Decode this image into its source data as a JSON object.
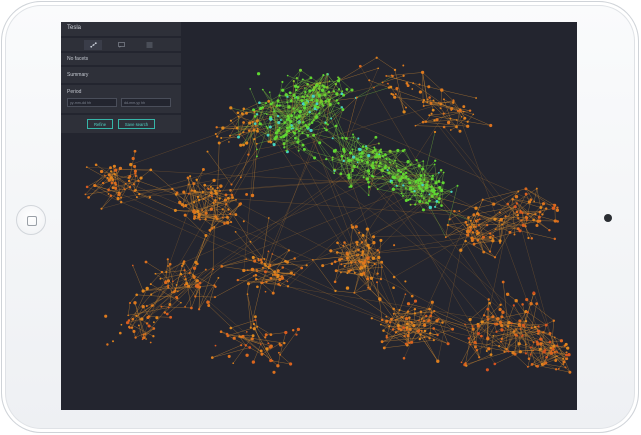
{
  "panel": {
    "title": "Tesla",
    "view_icons": [
      {
        "name": "network-view-icon",
        "glyph": "⋰",
        "active": true
      },
      {
        "name": "chat-view-icon",
        "glyph": "▢",
        "active": false
      },
      {
        "name": "list-view-icon",
        "glyph": "☰",
        "active": false
      }
    ],
    "facets_text": "No facets",
    "summary_label": "Summary",
    "period": {
      "label": "Period",
      "from_placeholder": "yy-mm-dd hh",
      "to_placeholder": "dd-mm-yy hh"
    },
    "refine_label": "Refine",
    "save_label": "Save search"
  },
  "colors": {
    "screen_bg": "#23252f",
    "panel_bg": "#2e3039",
    "accent": "#4ed3c4",
    "edge": "#c4822f",
    "node_hot": "#d4341f",
    "node_mid": "#e08a1e",
    "node_cool": "#5fd832",
    "node_cyan": "#46d2c0"
  }
}
